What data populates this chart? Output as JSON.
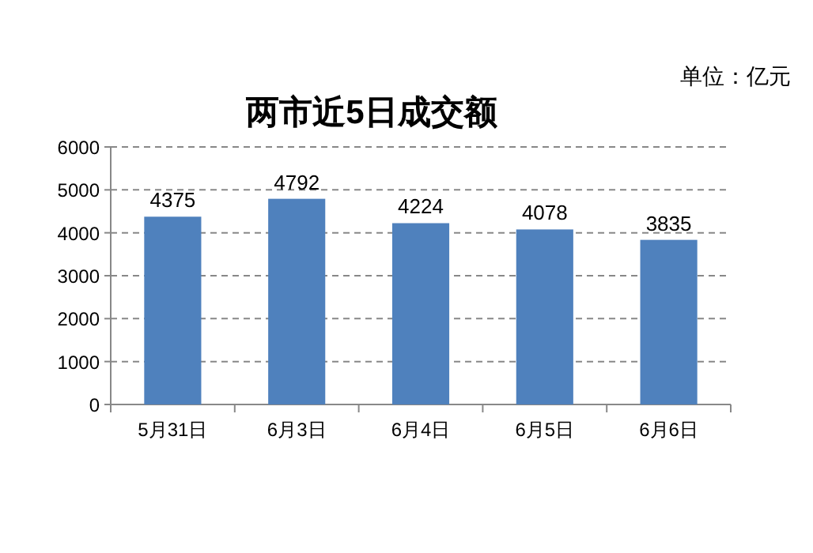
{
  "chart_data": {
    "type": "bar",
    "title": "两市近5日成交额",
    "annotations": [
      "单位：亿元"
    ],
    "categories": [
      "5月31日",
      "6月3日",
      "6月4日",
      "6月5日",
      "6月6日"
    ],
    "values": [
      4375,
      4792,
      4224,
      4078,
      3835
    ],
    "color": "#4f81bd",
    "ylim": [
      0,
      6000
    ],
    "yticks": [
      0,
      1000,
      2000,
      3000,
      4000,
      5000,
      6000
    ],
    "grid": "y",
    "data_labels": true
  }
}
